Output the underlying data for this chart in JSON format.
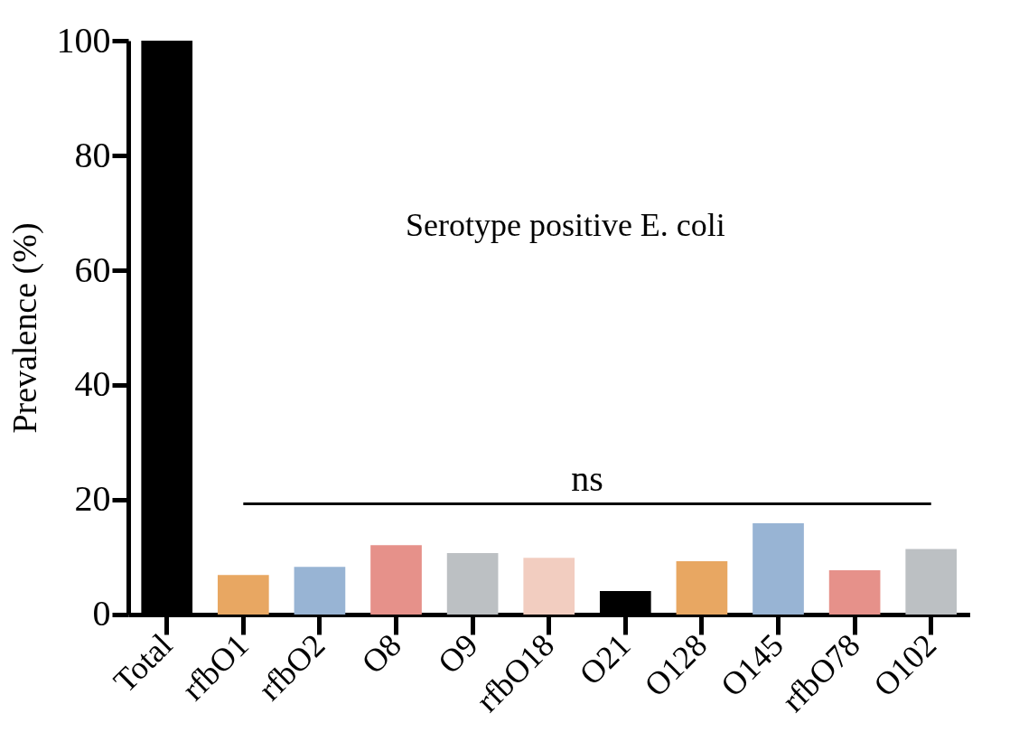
{
  "chart_data": {
    "type": "bar",
    "ylabel": "Prevalence (%)",
    "categories": [
      "Total",
      "rfbO1",
      "rfbO2",
      "O8",
      "O9",
      "rfbO18",
      "O21",
      "O128",
      "O145",
      "rfbO78",
      "O102"
    ],
    "values": [
      100,
      6.9,
      8.3,
      12.1,
      10.7,
      9.9,
      4.1,
      9.3,
      15.9,
      7.7,
      11.4
    ],
    "colors": [
      "#000000",
      "#e8a762",
      "#98b4d4",
      "#e6918a",
      "#bcc0c3",
      "#f2cdc0",
      "#000000",
      "#e8a762",
      "#98b4d4",
      "#e6918a",
      "#bcc0c3"
    ],
    "ylim": [
      0,
      100
    ],
    "yticks": [
      0,
      20,
      40,
      60,
      80,
      100
    ],
    "grid": false,
    "annotations": [
      "Serotype positive E. coli"
    ],
    "ref_lines": [
      {
        "axis": "y",
        "value": 19.3,
        "label": "ns"
      }
    ]
  }
}
